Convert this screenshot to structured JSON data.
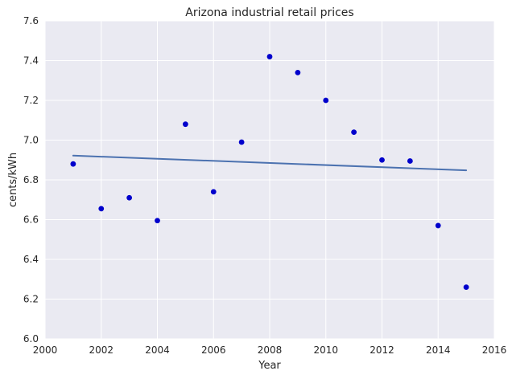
{
  "chart_data": {
    "type": "scatter",
    "title": "Arizona   industrial retail prices",
    "xlabel": "Year",
    "ylabel": "cents/kWh",
    "xlim": [
      2000,
      2016
    ],
    "ylim": [
      6.0,
      7.6
    ],
    "xticks": [
      2000,
      2002,
      2004,
      2006,
      2008,
      2010,
      2012,
      2014,
      2016
    ],
    "yticks": [
      6.0,
      6.2,
      6.4,
      6.6,
      6.8,
      7.0,
      7.2,
      7.4,
      7.6
    ],
    "xtick_labels": [
      "2000",
      "2002",
      "2004",
      "2006",
      "2008",
      "2010",
      "2012",
      "2014",
      "2016"
    ],
    "ytick_labels": [
      "6.0",
      "6.2",
      "6.4",
      "6.6",
      "6.8",
      "7.0",
      "7.2",
      "7.4",
      "7.6"
    ],
    "grid": true,
    "series": [
      {
        "type": "scatter",
        "x": [
          2001,
          2002,
          2003,
          2004,
          2005,
          2006,
          2007,
          2008,
          2009,
          2010,
          2011,
          2012,
          2013,
          2014,
          2015
        ],
        "y": [
          6.88,
          6.655,
          6.71,
          6.595,
          7.08,
          6.74,
          6.99,
          7.42,
          7.34,
          7.2,
          7.04,
          6.9,
          6.895,
          6.57,
          6.26
        ],
        "color": "#0000cc"
      },
      {
        "type": "line",
        "x": [
          2001,
          2015
        ],
        "y": [
          6.922,
          6.848
        ],
        "color": "#4c72b0"
      }
    ],
    "colors": {
      "plot_background": "#eaeaf2",
      "grid": "#ffffff",
      "text": "#262626"
    }
  }
}
